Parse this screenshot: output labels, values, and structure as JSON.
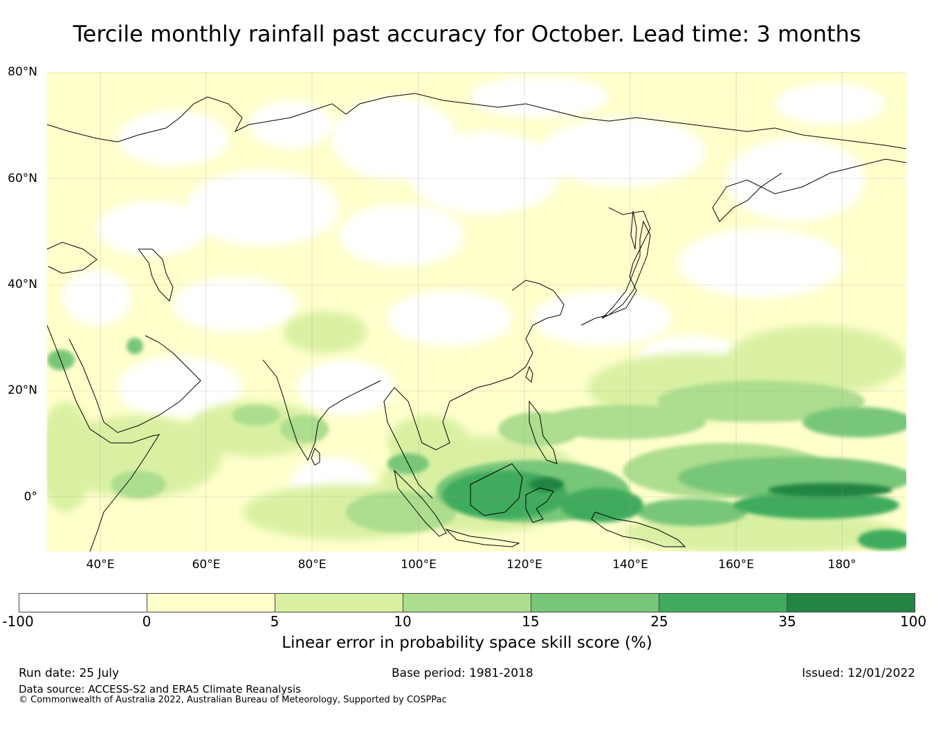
{
  "title": "Tercile monthly rainfall past accuracy for October. Lead time: 3 months",
  "map": {
    "lat_labels": [
      "80°N",
      "60°N",
      "40°N",
      "20°N",
      "0°"
    ],
    "lon_labels": [
      "40°E",
      "60°E",
      "80°E",
      "100°E",
      "120°E",
      "140°E",
      "160°E",
      "180°"
    ],
    "region": "Asia",
    "field": "Linear error in probability space skill score"
  },
  "colorbar": {
    "ticks": [
      "-100",
      "0",
      "5",
      "10",
      "15",
      "25",
      "35",
      "100"
    ],
    "colors": [
      "#ffffff",
      "#ffffcc",
      "#d9f0a3",
      "#addd8e",
      "#78c679",
      "#41ab5d",
      "#238443"
    ],
    "label": "Linear error in probability space skill score (%)"
  },
  "footer": {
    "run_date": "Run date: 25 July",
    "base_period": "Base period: 1981-2018",
    "issued": "Issued: 12/01/2022",
    "data_source": "Data source: ACCESS-S2 and ERA5 Climate Reanalysis",
    "copyright": "© Commonwealth of Australia 2022, Australian Bureau of Meteorology, Supported by COSPPac"
  }
}
